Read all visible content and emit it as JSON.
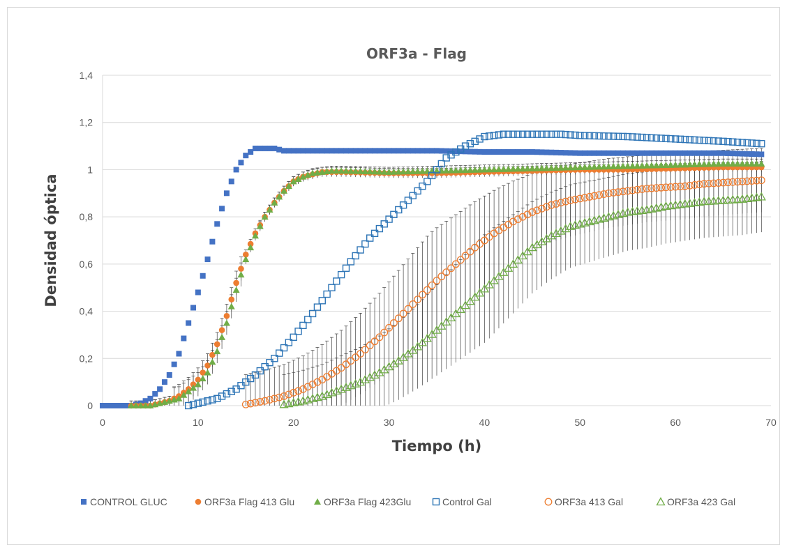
{
  "chart_data": {
    "type": "scatter",
    "title": "ORF3a - Flag",
    "xlabel": "Tiempo (h)",
    "ylabel": "Densidad óptica",
    "xlim": [
      0,
      70
    ],
    "ylim": [
      0,
      1.4
    ],
    "xticks": [
      "0",
      "10",
      "20",
      "30",
      "40",
      "50",
      "60",
      "70"
    ],
    "yticks": [
      "0",
      "0,2",
      "0,4",
      "0,6",
      "0,8",
      "1",
      "1,2",
      "1,4"
    ],
    "grid": "horizontal",
    "legend_position": "bottom",
    "series": [
      {
        "name": "CONTROL GLUC",
        "marker": "square-filled",
        "color": "#4472C4",
        "x": [
          0,
          1,
          2,
          3,
          4,
          5,
          6,
          7,
          8,
          9,
          10,
          11,
          12,
          13,
          14,
          15,
          16,
          17,
          18,
          19,
          20,
          25,
          30,
          35,
          40,
          45,
          50,
          55,
          60,
          65,
          69
        ],
        "y": [
          0,
          0,
          0,
          0,
          0.01,
          0.03,
          0.07,
          0.13,
          0.22,
          0.35,
          0.48,
          0.62,
          0.77,
          0.9,
          1.0,
          1.06,
          1.09,
          1.09,
          1.09,
          1.08,
          1.08,
          1.08,
          1.08,
          1.08,
          1.075,
          1.075,
          1.07,
          1.07,
          1.07,
          1.07,
          1.065
        ]
      },
      {
        "name": "ORF3a Flag 413 Glu",
        "marker": "circle-filled",
        "color": "#ED7D31",
        "x": [
          3,
          5,
          6,
          7,
          8,
          9,
          10,
          11,
          12,
          13,
          14,
          15,
          16,
          17,
          18,
          19,
          20,
          21,
          22,
          23,
          24,
          25,
          30,
          35,
          40,
          45,
          50,
          55,
          60,
          65,
          69
        ],
        "y": [
          0,
          0,
          0.01,
          0.02,
          0.04,
          0.07,
          0.11,
          0.17,
          0.26,
          0.38,
          0.52,
          0.64,
          0.73,
          0.8,
          0.86,
          0.91,
          0.95,
          0.97,
          0.98,
          0.99,
          0.99,
          0.99,
          0.985,
          0.985,
          0.99,
          0.995,
          1.0,
          1.0,
          1.005,
          1.01,
          1.01
        ]
      },
      {
        "name": "ORF3a Flag 423Glu",
        "marker": "triangle-filled",
        "color": "#70AD47",
        "x": [
          3,
          5,
          6,
          7,
          8,
          9,
          10,
          11,
          12,
          13,
          14,
          15,
          16,
          17,
          18,
          19,
          20,
          21,
          22,
          23,
          24,
          25,
          30,
          35,
          40,
          45,
          50,
          55,
          60,
          65,
          69
        ],
        "y": [
          0,
          0,
          0.01,
          0.02,
          0.03,
          0.06,
          0.09,
          0.14,
          0.23,
          0.35,
          0.49,
          0.62,
          0.72,
          0.8,
          0.86,
          0.91,
          0.95,
          0.97,
          0.985,
          0.99,
          0.995,
          0.995,
          0.99,
          0.995,
          1.0,
          1.005,
          1.01,
          1.015,
          1.02,
          1.025,
          1.025
        ]
      },
      {
        "name": "Control Gal",
        "marker": "square-open",
        "color": "#2E75B6",
        "x": [
          9,
          10,
          12,
          14,
          16,
          18,
          20,
          22,
          24,
          26,
          28,
          30,
          32,
          34,
          36,
          38,
          40,
          42,
          44,
          46,
          48,
          50,
          55,
          60,
          65,
          69
        ],
        "y": [
          0,
          0.01,
          0.03,
          0.07,
          0.13,
          0.2,
          0.29,
          0.39,
          0.5,
          0.61,
          0.71,
          0.79,
          0.87,
          0.95,
          1.05,
          1.1,
          1.14,
          1.15,
          1.15,
          1.15,
          1.15,
          1.145,
          1.14,
          1.13,
          1.12,
          1.11
        ]
      },
      {
        "name": "ORF3a 413 Gal",
        "marker": "circle-open",
        "color": "#ED7D31",
        "x": [
          15,
          17,
          19,
          21,
          23,
          25,
          27,
          29,
          31,
          33,
          35,
          37,
          39,
          41,
          43,
          45,
          47,
          49,
          51,
          53,
          55,
          57,
          59,
          61,
          63,
          65,
          67,
          69
        ],
        "y": [
          0.005,
          0.02,
          0.04,
          0.07,
          0.11,
          0.16,
          0.22,
          0.29,
          0.37,
          0.45,
          0.53,
          0.6,
          0.67,
          0.73,
          0.78,
          0.82,
          0.85,
          0.87,
          0.885,
          0.9,
          0.91,
          0.92,
          0.925,
          0.93,
          0.94,
          0.945,
          0.95,
          0.955
        ]
      },
      {
        "name": "ORF3a 423 Gal",
        "marker": "triangle-open",
        "color": "#70AD47",
        "x": [
          19,
          21,
          23,
          25,
          27,
          29,
          31,
          33,
          35,
          37,
          39,
          41,
          43,
          45,
          47,
          49,
          51,
          53,
          55,
          57,
          59,
          61,
          63,
          65,
          67,
          69
        ],
        "y": [
          0.005,
          0.02,
          0.04,
          0.07,
          0.1,
          0.14,
          0.19,
          0.25,
          0.32,
          0.39,
          0.46,
          0.53,
          0.6,
          0.67,
          0.72,
          0.76,
          0.78,
          0.8,
          0.82,
          0.83,
          0.845,
          0.855,
          0.865,
          0.87,
          0.875,
          0.885
        ]
      }
    ]
  }
}
